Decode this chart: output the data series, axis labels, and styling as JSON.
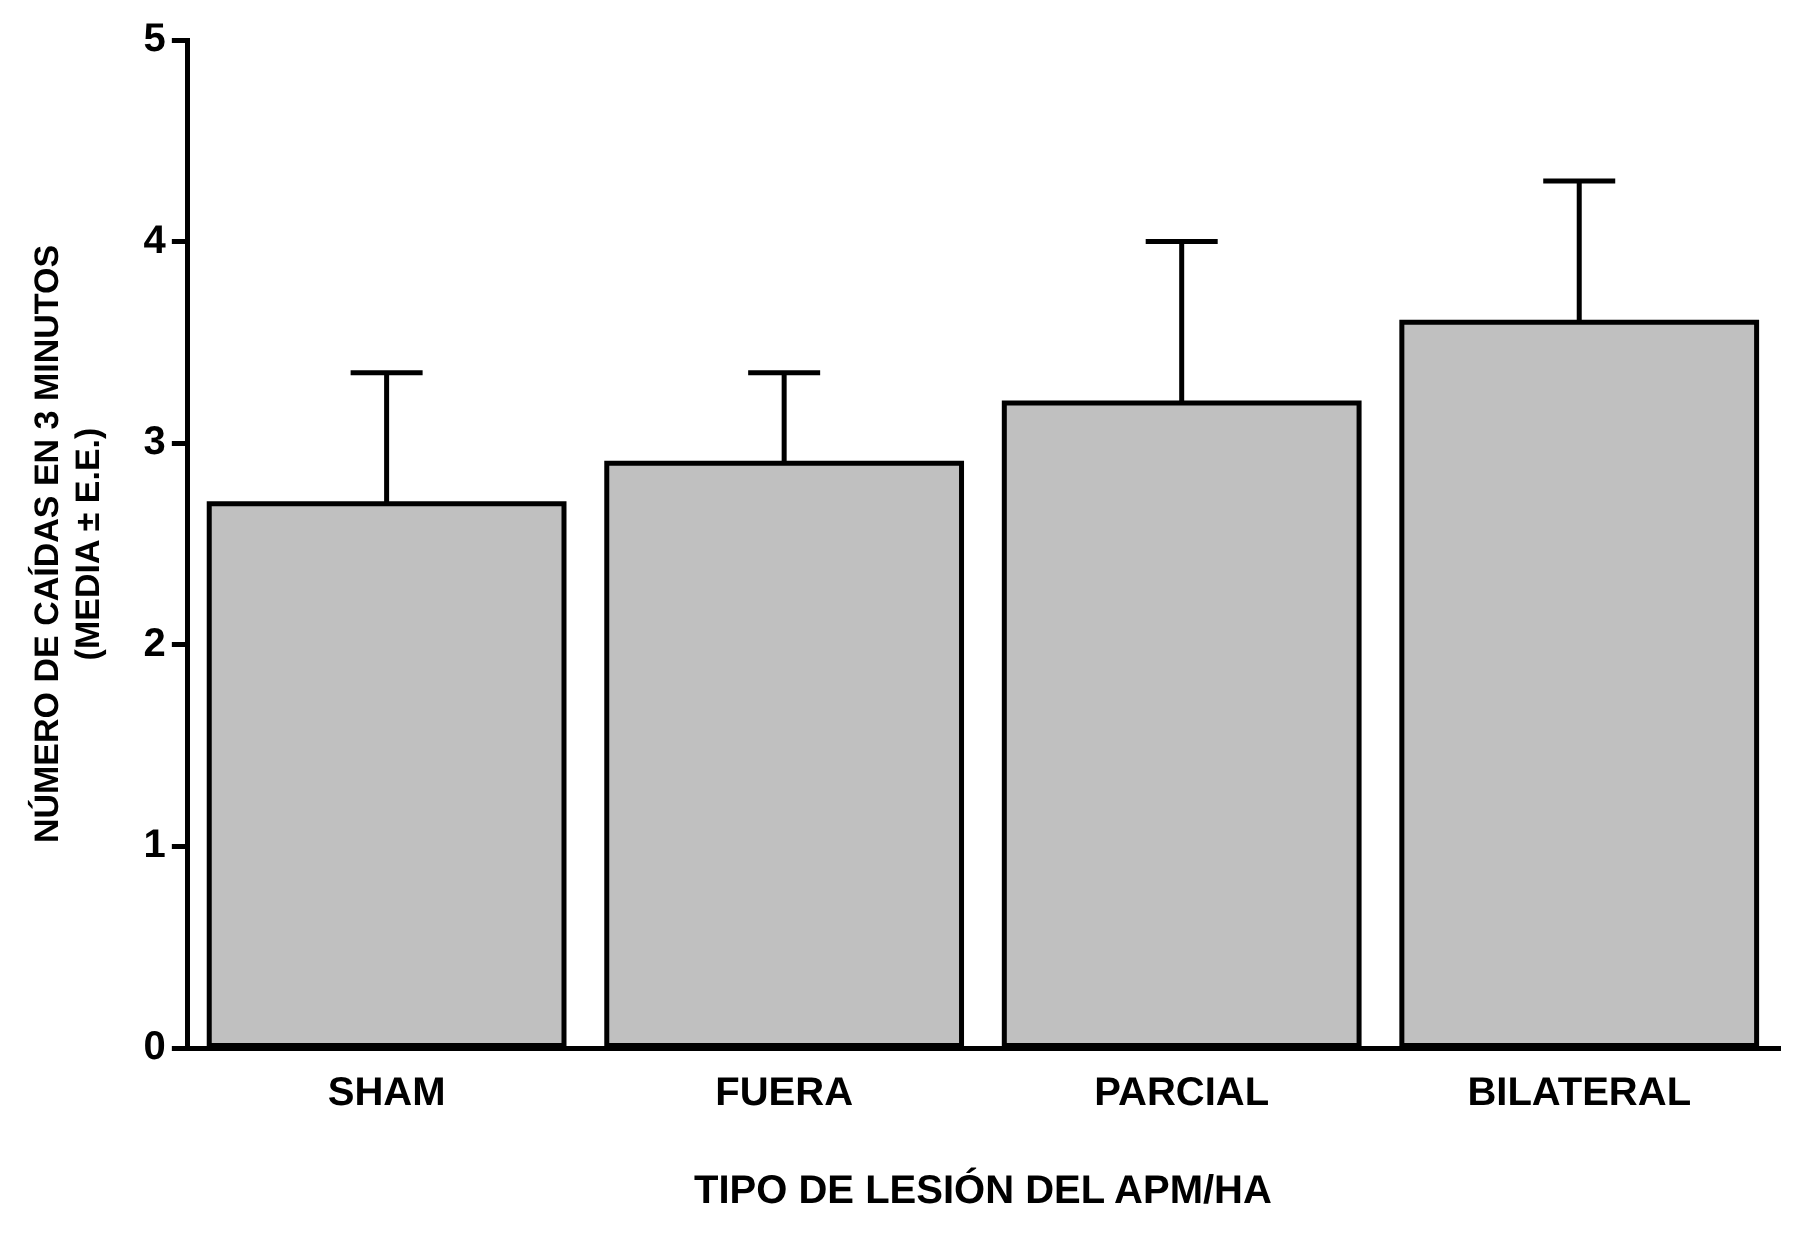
{
  "chart_data": {
    "type": "bar",
    "xlabel": "TIPO DE LESIÓN DEL APM/HA",
    "ylabel": "NÚMERO DE CAÍDAS EN 3 MINUTOS\n(MEDIA ± E.E.)",
    "categories": [
      "SHAM",
      "FUERA",
      "PARCIAL",
      "BILATERAL"
    ],
    "values": [
      2.7,
      2.9,
      3.2,
      3.6
    ],
    "errors": [
      [
        2.7,
        3.35
      ],
      [
        2.9,
        3.35
      ],
      [
        3.2,
        4.0
      ],
      [
        3.6,
        4.3
      ]
    ],
    "color": "#c0c0c0",
    "ylim": [
      0,
      5
    ],
    "yticks": [
      0,
      1,
      2,
      3,
      4,
      5
    ],
    "grid": false,
    "legend": false
  }
}
